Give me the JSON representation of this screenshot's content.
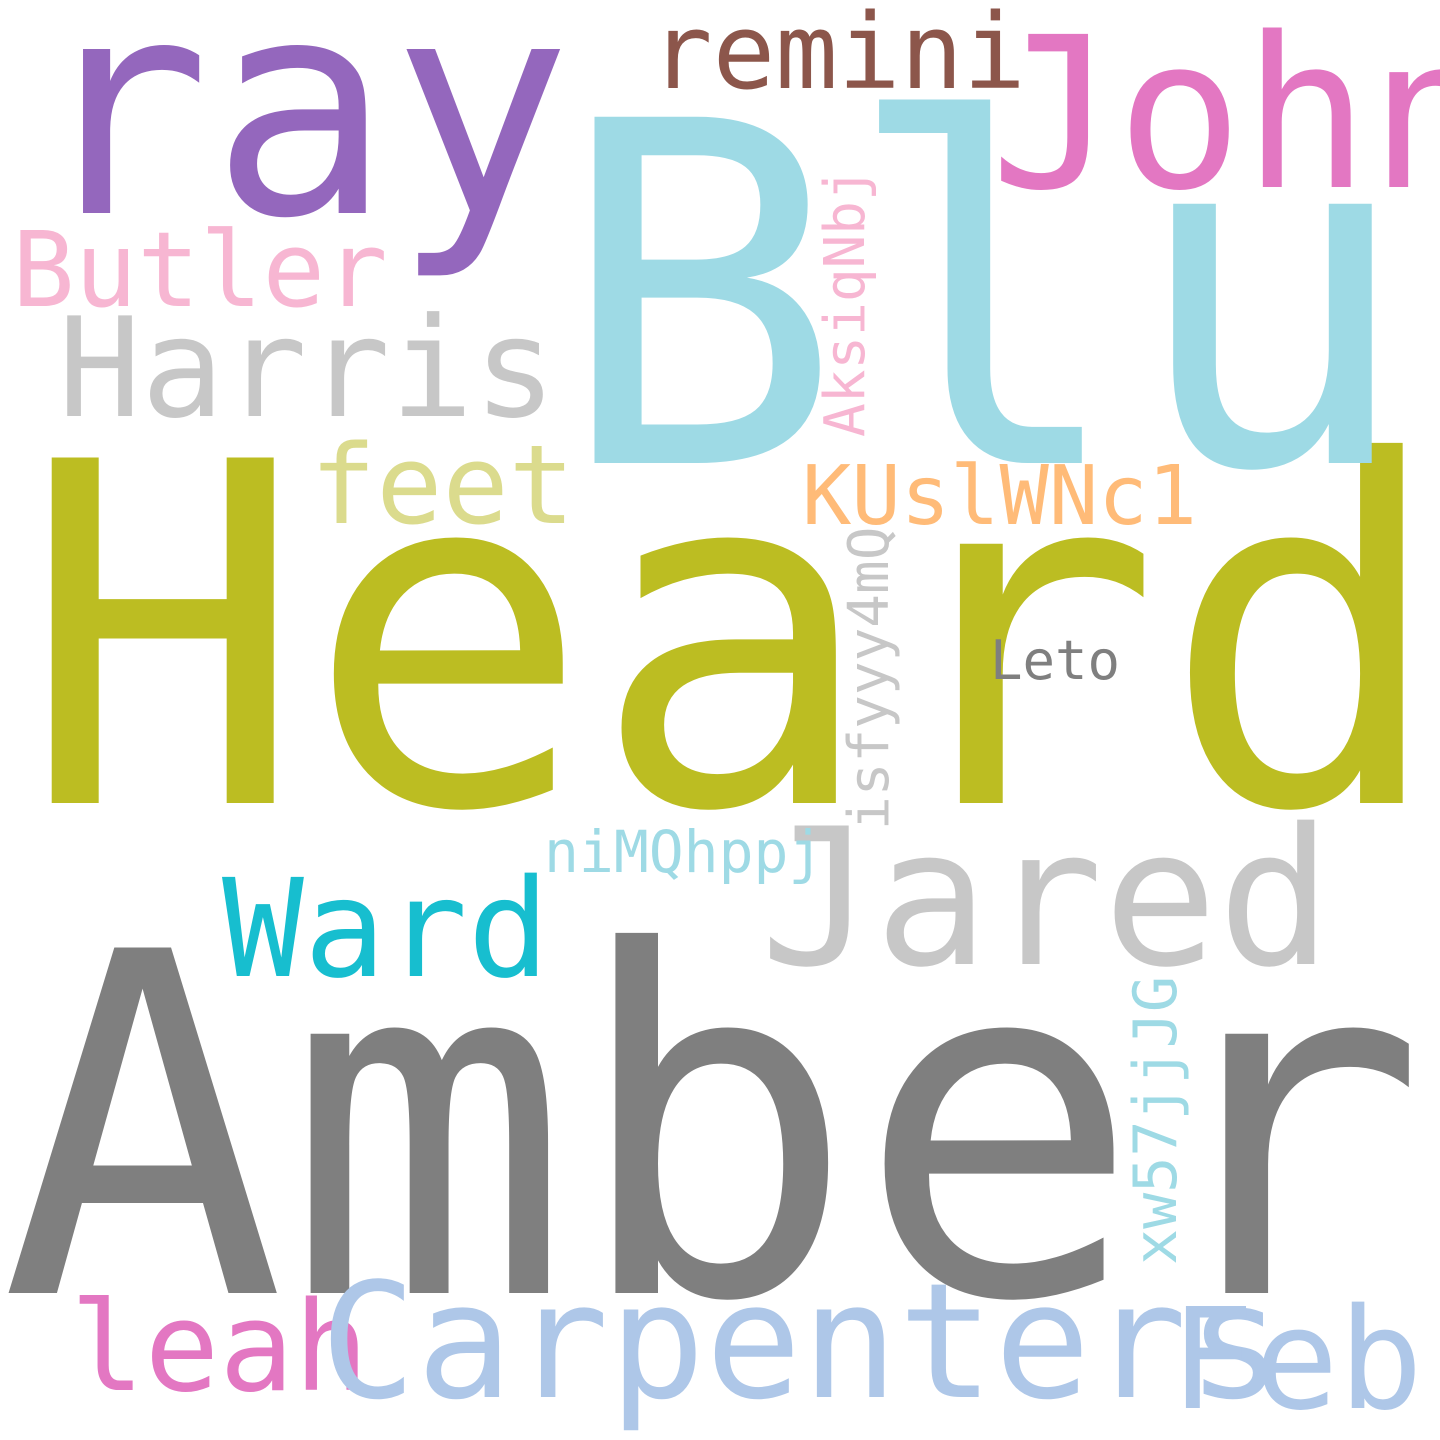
{
  "words": {
    "amber": {
      "text": "Amber",
      "color": "#7f7f7f"
    },
    "heard": {
      "text": "Heard",
      "color": "#bcbd22"
    },
    "blu": {
      "text": "Blu",
      "color": "#9edae5"
    },
    "ray": {
      "text": "ray",
      "color": "#9467bd"
    },
    "john": {
      "text": "John",
      "color": "#e377c2"
    },
    "remini": {
      "text": "remini",
      "color": "#8c564b"
    },
    "butler": {
      "text": "Butler",
      "color": "#f7b6d2"
    },
    "harris": {
      "text": "Harris",
      "color": "#c7c7c7"
    },
    "feet": {
      "text": "feet",
      "color": "#dbdb8d"
    },
    "kuslwnc1": {
      "text": "KUslWNc1",
      "color": "#ffbb78"
    },
    "leto": {
      "text": "Leto",
      "color": "#7f7f7f"
    },
    "jared": {
      "text": "Jared",
      "color": "#c7c7c7"
    },
    "ward": {
      "text": "Ward",
      "color": "#17becf"
    },
    "nimqhppj": {
      "text": "niMQhppj",
      "color": "#9edae5"
    },
    "leah": {
      "text": "leah",
      "color": "#e377c2"
    },
    "carpenters": {
      "text": "Carpenters",
      "color": "#aec7e8"
    },
    "feb": {
      "text": "Feb",
      "color": "#aec7e8"
    },
    "aksiqnbj": {
      "text": "AksiqNbj",
      "color": "#f7b6d2"
    },
    "isfyyy4mq": {
      "text": "isfyyy4mQ",
      "color": "#c7c7c7"
    },
    "xw57jjjg": {
      "text": "xw57jjJG",
      "color": "#9edae5"
    }
  }
}
